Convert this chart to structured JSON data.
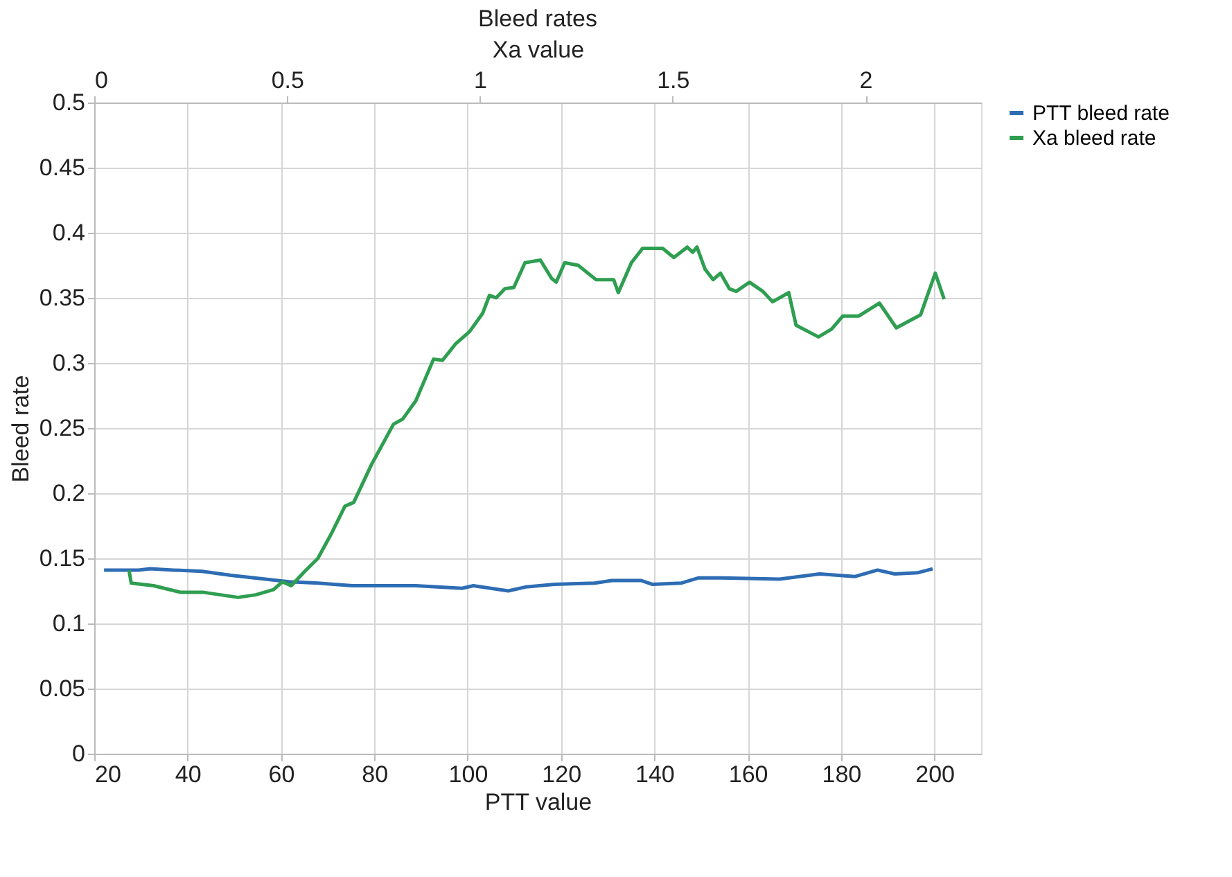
{
  "chart_data": {
    "type": "line",
    "title": "Bleed rates",
    "xlabel": "PTT value",
    "x2label": "Xa value",
    "ylabel": "Bleed rate",
    "xlim": [
      20,
      210
    ],
    "xticks": [
      20,
      40,
      60,
      80,
      100,
      120,
      140,
      160,
      180,
      200
    ],
    "x2lim": [
      0,
      2.3
    ],
    "x2ticks": [
      0,
      0.5,
      1,
      1.5,
      2
    ],
    "ylim": [
      0,
      0.5
    ],
    "yticks": [
      0,
      0.05,
      0.1,
      0.15,
      0.2,
      0.25,
      0.3,
      0.35,
      0.4,
      0.45,
      0.5
    ],
    "grid": true,
    "legend": "right",
    "marker": "none",
    "line_style": "solid",
    "series": [
      {
        "name": "PTT bleed rate",
        "color": "#2e6db4",
        "x": [
          22.1,
          29.5,
          32.0,
          36.9,
          43.1,
          49.3,
          54.3,
          61.7,
          67.9,
          75.3,
          88.9,
          98.8,
          101.2,
          108.7,
          112.4,
          118.6,
          127.2,
          130.9,
          137.1,
          139.6,
          145.8,
          149.5,
          154.4,
          166.8,
          175.4,
          182.9,
          187.8,
          191.5,
          196.5,
          199.6
        ],
        "values": [
          0.141,
          0.141,
          0.142,
          0.141,
          0.14,
          0.137,
          0.135,
          0.132,
          0.131,
          0.129,
          0.129,
          0.127,
          0.129,
          0.125,
          0.128,
          0.13,
          0.131,
          0.133,
          0.133,
          0.13,
          0.131,
          0.135,
          0.135,
          0.134,
          0.138,
          0.136,
          0.141,
          0.138,
          0.139,
          0.142
        ]
      },
      {
        "name": "Xa bleed rate",
        "color": "#2e9e50",
        "axis": "x2",
        "x": [
          0.09,
          0.096,
          0.154,
          0.223,
          0.281,
          0.327,
          0.373,
          0.419,
          0.465,
          0.488,
          0.511,
          0.546,
          0.58,
          0.615,
          0.65,
          0.673,
          0.719,
          0.776,
          0.8,
          0.834,
          0.88,
          0.903,
          0.938,
          0.973,
          1.007,
          1.025,
          1.042,
          1.065,
          1.088,
          1.117,
          1.157,
          1.186,
          1.198,
          1.22,
          1.255,
          1.301,
          1.347,
          1.359,
          1.393,
          1.422,
          1.474,
          1.503,
          1.538,
          1.552,
          1.563,
          1.584,
          1.605,
          1.624,
          1.647,
          1.665,
          1.699,
          1.734,
          1.759,
          1.801,
          1.82,
          1.878,
          1.912,
          1.941,
          1.982,
          2.036,
          2.08,
          2.143,
          2.181,
          2.204
        ],
        "values": [
          0.141,
          0.131,
          0.129,
          0.124,
          0.124,
          0.122,
          0.12,
          0.122,
          0.126,
          0.132,
          0.129,
          0.14,
          0.15,
          0.169,
          0.19,
          0.193,
          0.222,
          0.253,
          0.257,
          0.271,
          0.303,
          0.302,
          0.315,
          0.324,
          0.338,
          0.352,
          0.35,
          0.357,
          0.358,
          0.377,
          0.379,
          0.365,
          0.362,
          0.377,
          0.375,
          0.364,
          0.364,
          0.354,
          0.377,
          0.388,
          0.388,
          0.381,
          0.389,
          0.385,
          0.389,
          0.372,
          0.364,
          0.369,
          0.357,
          0.355,
          0.362,
          0.355,
          0.347,
          0.354,
          0.329,
          0.32,
          0.326,
          0.336,
          0.336,
          0.346,
          0.327,
          0.337,
          0.369,
          0.349
        ]
      }
    ]
  }
}
